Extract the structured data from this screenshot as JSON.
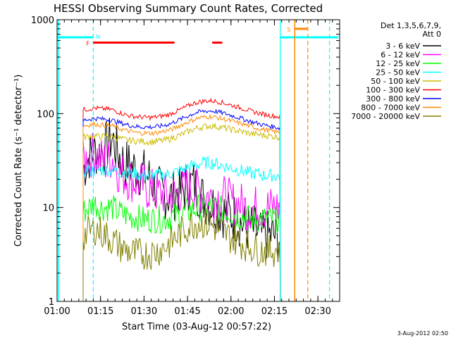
{
  "chart_data": {
    "type": "line",
    "title": "HESSI Observing Summary Count Rates, Corrected",
    "xlabel": "Start Time (03-Aug-12 00:57:22)",
    "ylabel": "Corrected Count Rate (s⁻¹ detector⁻¹)",
    "yscale": "log",
    "ylim": [
      1,
      1000
    ],
    "xlim_minutes": [
      0,
      97.5
    ],
    "x_tick_labels": [
      "01:00",
      "01:15",
      "01:30",
      "01:45",
      "02:00",
      "02:15",
      "02:30"
    ],
    "x_tick_minutes": [
      0,
      15,
      30,
      45,
      60,
      75,
      90
    ],
    "y_tick_labels": [
      "1",
      "10",
      "100",
      "1000"
    ],
    "y_tick_values": [
      1,
      10,
      100,
      1000
    ],
    "grid": false,
    "legend_header": [
      "Det 1,3,5,6,7,9,",
      "Att 0"
    ],
    "legend_position": "right",
    "x": [
      9,
      11,
      13,
      15,
      17,
      19,
      21,
      23,
      25,
      27,
      29,
      31,
      33,
      35,
      37,
      39,
      41,
      43,
      45,
      47,
      49,
      51,
      53,
      55,
      57,
      59,
      61,
      63,
      65,
      67,
      69,
      71,
      73,
      75,
      77
    ],
    "series": [
      {
        "name": "3 - 6 keV",
        "color": "#000000",
        "values": [
          25,
          35,
          40,
          38,
          45,
          55,
          38,
          30,
          28,
          26,
          24,
          22,
          18,
          15,
          14,
          13,
          14,
          15,
          17,
          18,
          14,
          12,
          11,
          10,
          9,
          8.5,
          8,
          7,
          6,
          6,
          5.5,
          5,
          5,
          5,
          4.5
        ]
      },
      {
        "name": "6 - 12 keV",
        "color": "#ff00ff",
        "values": [
          30,
          35,
          38,
          33,
          30,
          35,
          25,
          22,
          20,
          19,
          18,
          16,
          15,
          14,
          14,
          13,
          14,
          15,
          17,
          16,
          15,
          14,
          13,
          13,
          13,
          12,
          11,
          11,
          10,
          10,
          10,
          10,
          10,
          10,
          10
        ]
      },
      {
        "name": "12 - 25 keV",
        "color": "#00ff00",
        "values": [
          9,
          10,
          11,
          10,
          10,
          10,
          9,
          8.5,
          8,
          8,
          7.5,
          7.5,
          7.5,
          7.5,
          7.5,
          8,
          8,
          8.5,
          9,
          9.5,
          10,
          10,
          10,
          10,
          9.5,
          9,
          8.5,
          8,
          8,
          7.5,
          7.5,
          7.5,
          7.5,
          7.5,
          7.5
        ]
      },
      {
        "name": "25 - 50 keV",
        "color": "#00ffff",
        "values": [
          24,
          25,
          25,
          25,
          25,
          25,
          24,
          24,
          23,
          23,
          22,
          22,
          22,
          22,
          22,
          23,
          24,
          25,
          27,
          28,
          29,
          30,
          30,
          29,
          28,
          27,
          26,
          25,
          24,
          23,
          23,
          22,
          22,
          22,
          21
        ]
      },
      {
        "name": "50 - 100 keV",
        "color": "#ccbb00",
        "values": [
          56,
          57,
          58,
          57,
          57,
          57,
          55,
          53,
          52,
          51,
          51,
          50,
          50,
          51,
          52,
          54,
          57,
          60,
          64,
          68,
          71,
          73,
          74,
          73,
          71,
          69,
          67,
          65,
          63,
          61,
          60,
          59,
          58,
          57,
          56
        ]
      },
      {
        "name": "100 - 300 keV",
        "color": "#ff0000",
        "values": [
          110,
          112,
          115,
          113,
          112,
          110,
          104,
          99,
          95,
          93,
          92,
          91,
          91,
          93,
          95,
          99,
          105,
          112,
          120,
          128,
          133,
          136,
          137,
          135,
          131,
          126,
          121,
          116,
          111,
          106,
          102,
          99,
          96,
          94,
          92
        ]
      },
      {
        "name": "300 - 800 keV",
        "color": "#0000ff",
        "values": [
          85,
          87,
          89,
          88,
          87,
          85,
          81,
          78,
          75,
          73,
          72,
          72,
          72,
          73,
          75,
          78,
          83,
          88,
          94,
          100,
          104,
          106,
          107,
          105,
          102,
          98,
          94,
          90,
          86,
          82,
          79,
          76,
          74,
          72,
          70
        ]
      },
      {
        "name": "800 - 7000 keV",
        "color": "#ff8800",
        "values": [
          74,
          76,
          77,
          76,
          75,
          74,
          70,
          67,
          65,
          63,
          62,
          62,
          62,
          63,
          65,
          67,
          71,
          76,
          81,
          86,
          90,
          92,
          93,
          91,
          88,
          85,
          82,
          79,
          76,
          73,
          70,
          68,
          66,
          64,
          63
        ]
      },
      {
        "name": "7000 - 20000 keV",
        "color": "#808000",
        "values": [
          5,
          5.5,
          6,
          5.5,
          5,
          4.5,
          4,
          3.6,
          3.4,
          3.2,
          3.2,
          3.2,
          3.3,
          3.5,
          3.8,
          4.2,
          4.8,
          5.5,
          6.2,
          6.8,
          7,
          6.8,
          6.5,
          6,
          5.5,
          5,
          4.6,
          4.3,
          4,
          3.8,
          3.6,
          3.5,
          3.5,
          3.5,
          3.6
        ]
      }
    ],
    "markers": {
      "eclipse_bar_color": "#00ffff",
      "eclipse_bar_level": 650,
      "eclipse_label": "N",
      "flare_label": "F",
      "flare_color": "#ff0000",
      "flare_level": 570,
      "saa_label": "S",
      "saa_color": "#ff8800",
      "saa_level": 800
    },
    "footer_date": "3-Aug-2012 02:50"
  }
}
